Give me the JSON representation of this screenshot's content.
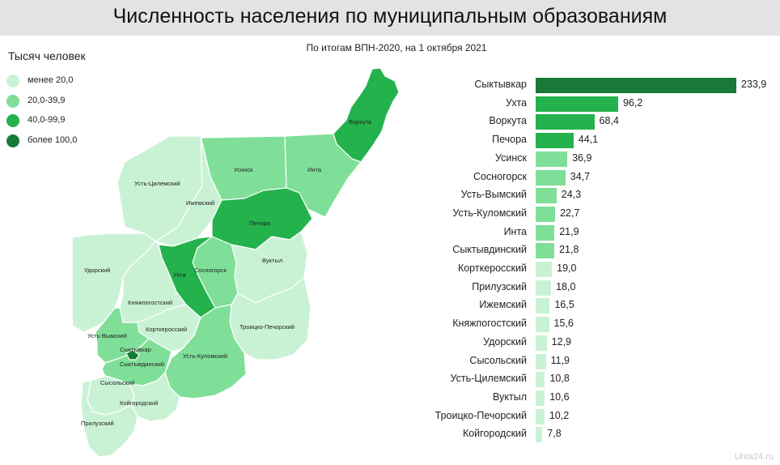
{
  "header": {
    "title": "Численность населения по муниципальным образованиям",
    "subtitle": "По итогам ВПН-2020, на 1 октября 2021"
  },
  "legend": {
    "title": "Тысяч человек",
    "items": [
      {
        "label": "менее 20,0",
        "color": "#c9f2d4"
      },
      {
        "label": "20,0-39,9",
        "color": "#7fdf98"
      },
      {
        "label": "40,0-99,9",
        "color": "#24b24c"
      },
      {
        "label": "более 100,0",
        "color": "#187a36"
      }
    ]
  },
  "map": {
    "labels": {
      "vorkuta": "Воркута",
      "usinsk": "Усинск",
      "inta": "Инта",
      "ust_tsilemsky": "Усть-Цилемский",
      "izhemsky": "Ижемский",
      "pechora": "Печора",
      "udorsky": "Удорский",
      "sosnogorsk": "Сосногорск",
      "vuktyl": "Вуктыл",
      "ukhta": "Ухта",
      "knyazhpogostsky": "Княжпогостский",
      "kortkerossky": "Корткеросский",
      "troitsko_pechorsky": "Троицко-Печорский",
      "ust_vymsky": "Усть-Вымский",
      "syktyvkar": "Сыктывкар",
      "syktyvdinsky": "Сыктывдинский",
      "ust_kulomsky": "Усть-Куломский",
      "sysolsky": "Сысольский",
      "koygorodsky": "Койгородский",
      "priluzsky": "Прилузский"
    }
  },
  "chart_data": {
    "type": "bar",
    "orientation": "horizontal",
    "categories": [
      "Сыктывкар",
      "Ухта",
      "Воркута",
      "Печора",
      "Усинск",
      "Сосногорск",
      "Усть-Вымский",
      "Усть-Куломский",
      "Инта",
      "Сыктывдинский",
      "Корткеросский",
      "Прилузский",
      "Ижемский",
      "Княжпогостский",
      "Удорский",
      "Сысольский",
      "Усть-Цилемский",
      "Вуктыл",
      "Троицко-Печорский",
      "Койгородский"
    ],
    "values": [
      233.9,
      96.2,
      68.4,
      44.1,
      36.9,
      34.7,
      24.3,
      22.7,
      21.9,
      21.8,
      19.0,
      18.0,
      16.5,
      15.6,
      12.9,
      11.9,
      10.8,
      10.6,
      10.2,
      7.8
    ],
    "value_labels": [
      "233,9",
      "96,2",
      "68,4",
      "44,1",
      "36,9",
      "34,7",
      "24,3",
      "22,7",
      "21,9",
      "21,8",
      "19,0",
      "18,0",
      "16,5",
      "15,6",
      "12,9",
      "11,9",
      "10,8",
      "10,6",
      "10,2",
      "7,8"
    ],
    "xlim": [
      0,
      233.9
    ],
    "title": "",
    "xlabel": "",
    "ylabel": ""
  },
  "watermark": "Uhta24.ru"
}
